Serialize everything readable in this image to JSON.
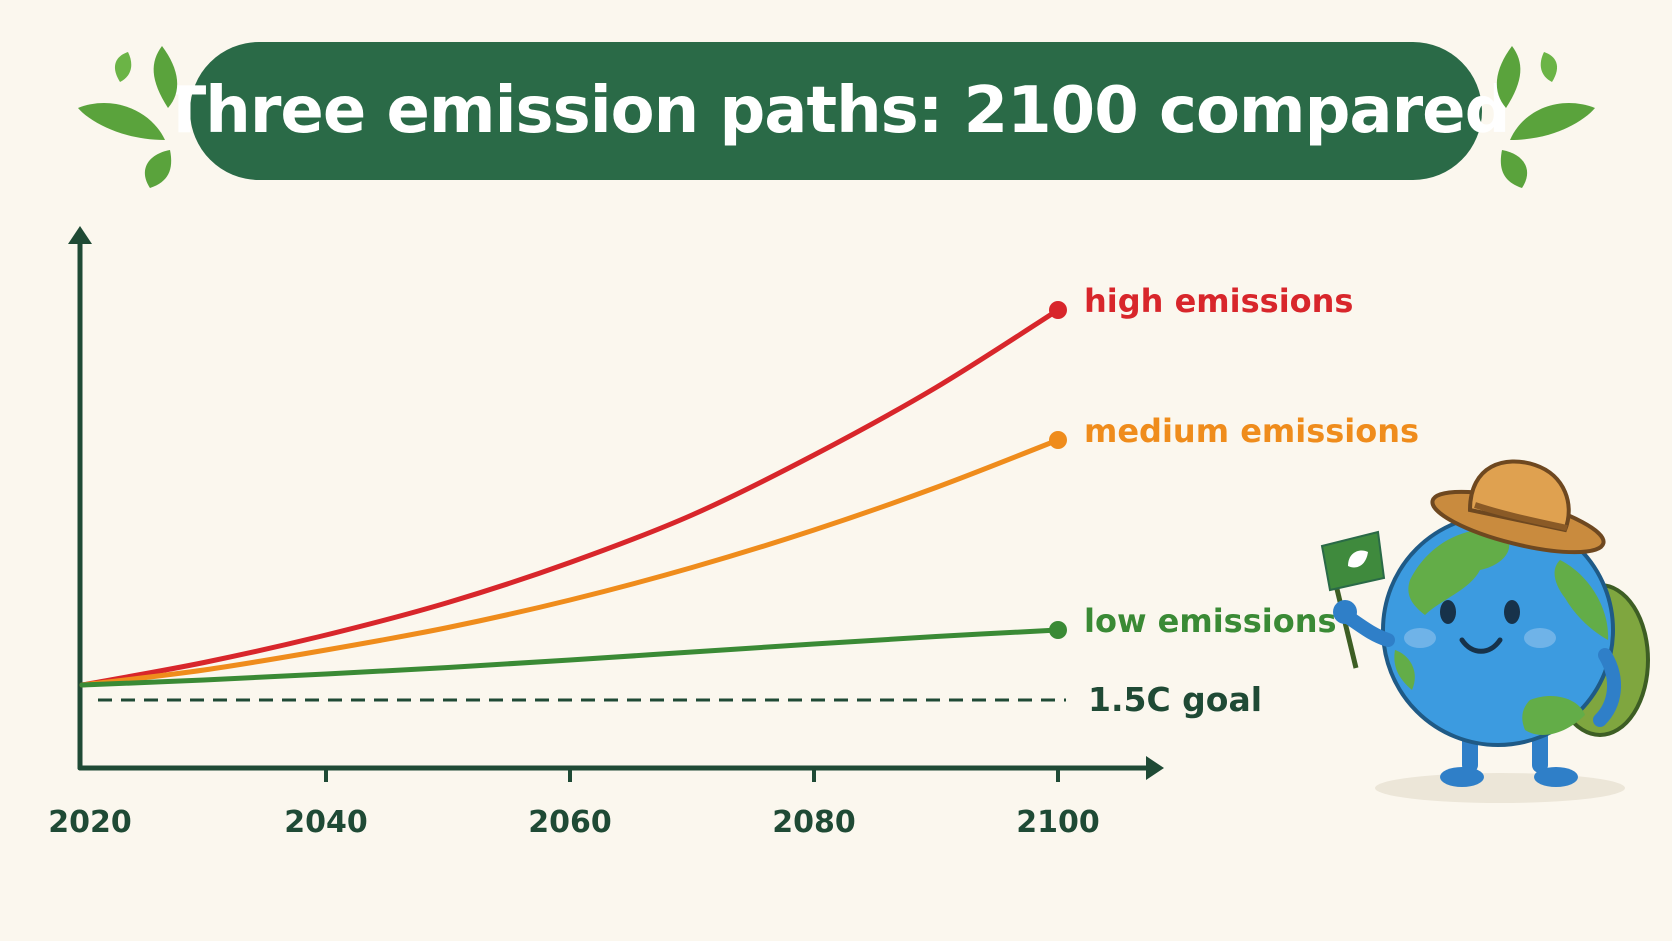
{
  "title": "Three emission paths: 2100 compared",
  "colors": {
    "banner": "#2a6a47",
    "axis": "#1f4a35",
    "high": "#d8262b",
    "medium": "#ef8c1c",
    "low": "#3a8a35",
    "leaf": "#5aa33c"
  },
  "chart_data": {
    "type": "line",
    "title": "Three emission paths: 2100 compared",
    "xlabel": "",
    "ylabel": "",
    "x_ticks": [
      2020,
      2040,
      2060,
      2080,
      2100
    ],
    "xlim": [
      2020,
      2100
    ],
    "ylim": [
      0,
      10
    ],
    "grid": false,
    "legend": "inline labels at line ends",
    "series": [
      {
        "name": "high emissions",
        "color": "#d8262b",
        "x": [
          2020,
          2030,
          2040,
          2050,
          2060,
          2070,
          2080,
          2090,
          2100
        ],
        "y": [
          1.1,
          1.55,
          2.1,
          2.75,
          3.55,
          4.5,
          5.7,
          7.05,
          8.6
        ]
      },
      {
        "name": "medium emissions",
        "color": "#ef8c1c",
        "x": [
          2020,
          2030,
          2040,
          2050,
          2060,
          2070,
          2080,
          2090,
          2100
        ],
        "y": [
          1.1,
          1.4,
          1.8,
          2.25,
          2.8,
          3.45,
          4.2,
          5.05,
          6.0
        ]
      },
      {
        "name": "low emissions",
        "color": "#3a8a35",
        "x": [
          2020,
          2030,
          2040,
          2050,
          2060,
          2070,
          2080,
          2090,
          2100
        ],
        "y": [
          1.1,
          1.2,
          1.32,
          1.45,
          1.6,
          1.76,
          1.92,
          2.07,
          2.2
        ]
      }
    ],
    "reference_lines": [
      {
        "label": "1.5C goal",
        "y": 0.8,
        "style": "dashed"
      }
    ]
  }
}
